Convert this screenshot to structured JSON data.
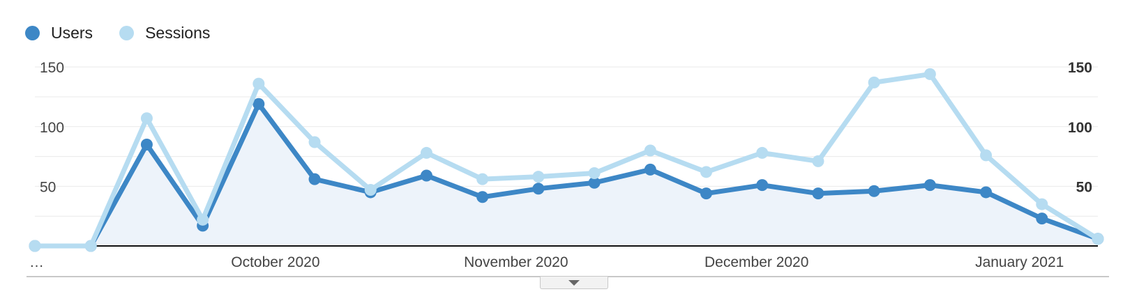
{
  "legend": {
    "users_label": "Users",
    "sessions_label": "Sessions"
  },
  "colors": {
    "users": "#3d87c6",
    "sessions": "#b6dcf1",
    "area_fill": "#edf3fa",
    "grid": "#e9e9e9",
    "baseline": "#111111"
  },
  "expand_icon": "chevron-down-icon",
  "chart_data": {
    "type": "line",
    "x_tick_labels": [
      "…",
      "October 2020",
      "November 2020",
      "December 2020",
      "January 2021"
    ],
    "y_ticks_left": [
      "150",
      "100",
      "50"
    ],
    "y_ticks_right": [
      "150",
      "100",
      "50"
    ],
    "ylim": [
      0,
      150
    ],
    "grid": true,
    "legend_position": "top-left",
    "series": [
      {
        "name": "Users",
        "area": true,
        "values": [
          0,
          0,
          85,
          17,
          119,
          56,
          45,
          59,
          41,
          48,
          53,
          64,
          44,
          51,
          44,
          46,
          51,
          45,
          23,
          6
        ]
      },
      {
        "name": "Sessions",
        "area": false,
        "values": [
          0,
          0,
          107,
          22,
          136,
          87,
          47,
          78,
          56,
          58,
          61,
          80,
          62,
          78,
          71,
          137,
          144,
          76,
          35,
          6
        ]
      }
    ]
  }
}
